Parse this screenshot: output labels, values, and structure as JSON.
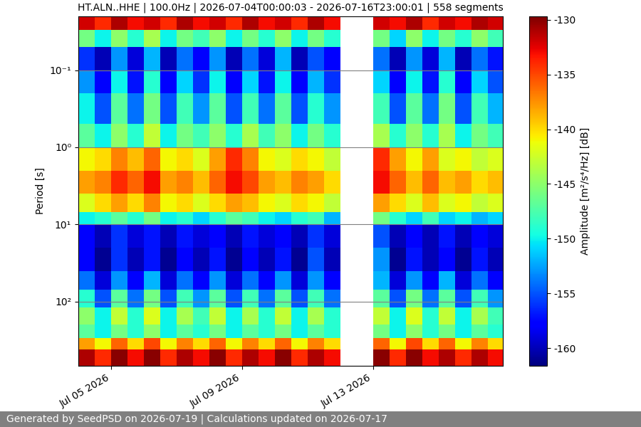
{
  "chart_data": {
    "type": "heatmap",
    "title": "HT.ALN..HHE | 100.0Hz | 2026-07-04T00:00:03 - 2026-07-16T23:00:01 | 558 segments",
    "y_label": "Period [s]",
    "footer": "Generated by SeedPSD on 2026-07-19 | Calculations updated on 2026-07-17",
    "log": "y",
    "grid": true,
    "color": "jet",
    "xlim": [
      "2026-07-04T00:00:03",
      "2026-07-16T23:00:01"
    ],
    "xticks": [
      {
        "value": "2026-07-05T00:00:00",
        "label": "Jul 05 2026"
      },
      {
        "value": "2026-07-09T00:00:00",
        "label": "Jul 09 2026"
      },
      {
        "value": "2026-07-13T00:00:00",
        "label": "Jul 13 2026"
      }
    ],
    "ylim": [
      685,
      0.02
    ],
    "yticks": [
      {
        "value": 0.1,
        "label": "10⁻¹"
      },
      {
        "value": 1,
        "label": "10⁰"
      },
      {
        "value": 10,
        "label": "10¹"
      },
      {
        "value": 100,
        "label": "10²"
      }
    ],
    "x_edges": [
      "2026-07-04T00:00:03",
      "2026-07-04T12:00:00",
      "2026-07-05T00:00:00",
      "2026-07-05T12:00:00",
      "2026-07-06T00:00:00",
      "2026-07-06T12:00:00",
      "2026-07-07T00:00:00",
      "2026-07-07T12:00:00",
      "2026-07-08T00:00:00",
      "2026-07-08T12:00:00",
      "2026-07-09T00:00:00",
      "2026-07-09T12:00:00",
      "2026-07-10T00:00:00",
      "2026-07-10T12:00:00",
      "2026-07-11T00:00:00",
      "2026-07-11T12:00:00",
      "2026-07-12T00:00:00",
      "2026-07-12T12:00:00",
      "2026-07-13T00:00:00",
      "2026-07-13T12:00:00",
      "2026-07-14T00:00:00",
      "2026-07-14T12:00:00",
      "2026-07-15T00:00:00",
      "2026-07-15T12:00:00",
      "2026-07-16T00:00:00",
      "2026-07-16T12:00:00",
      "2026-07-16T23:00:01"
    ],
    "y_edges": [
      0.02,
      0.03,
      0.05,
      0.1,
      0.2,
      0.5,
      1,
      2,
      4,
      7,
      10,
      20,
      40,
      70,
      120,
      200,
      300,
      420,
      685
    ],
    "cells": [
      [
        -132,
        -134,
        -131,
        -133,
        -132,
        -134,
        -131,
        -133,
        -132,
        -134,
        -131,
        -133,
        -132,
        -134,
        -131,
        -133,
        null,
        null,
        -132,
        -133,
        -131,
        -134,
        -132,
        -133,
        -131,
        -132
      ],
      [
        -146,
        -150,
        -145,
        -149,
        -144,
        -150,
        -146,
        -148,
        -145,
        -150,
        -146,
        -149,
        -145,
        -150,
        -146,
        -149,
        null,
        null,
        -146,
        -151,
        -145,
        -150,
        -146,
        -149,
        -145,
        -148
      ],
      [
        -156,
        -160,
        -153,
        -159,
        -152,
        -160,
        -154,
        -158,
        -153,
        -160,
        -154,
        -159,
        -152,
        -160,
        -155,
        -158,
        null,
        null,
        -154,
        -160,
        -153,
        -159,
        -152,
        -160,
        -154,
        -157
      ],
      [
        -153,
        -158,
        -150,
        -157,
        -149,
        -158,
        -151,
        -156,
        -150,
        -158,
        -151,
        -157,
        -150,
        -158,
        -152,
        -156,
        null,
        null,
        -151,
        -158,
        -150,
        -157,
        -149,
        -158,
        -151,
        -155
      ],
      [
        -150,
        -155,
        -147,
        -154,
        -146,
        -155,
        -148,
        -153,
        -147,
        -155,
        -148,
        -154,
        -147,
        -155,
        -149,
        -153,
        null,
        null,
        -148,
        -155,
        -147,
        -154,
        -146,
        -155,
        -148,
        -152
      ],
      [
        -147,
        -150,
        -145,
        -149,
        -143,
        -150,
        -146,
        -148,
        -145,
        -149,
        -144,
        -148,
        -145,
        -150,
        -146,
        -149,
        null,
        null,
        -144,
        -149,
        -145,
        -149,
        -144,
        -150,
        -146,
        -148
      ],
      [
        -141,
        -140,
        -137,
        -139,
        -136,
        -141,
        -140,
        -142,
        -138,
        -134,
        -137,
        -141,
        -142,
        -140,
        -141,
        -143,
        null,
        null,
        -134,
        -138,
        -141,
        -138,
        -142,
        -141,
        -143,
        -142
      ],
      [
        -138,
        -137,
        -134,
        -136,
        -133,
        -138,
        -137,
        -139,
        -136,
        -133,
        -135,
        -138,
        -139,
        -137,
        -138,
        -140,
        null,
        null,
        -133,
        -136,
        -139,
        -136,
        -139,
        -138,
        -140,
        -139
      ],
      [
        -142,
        -140,
        -138,
        -140,
        -137,
        -141,
        -140,
        -142,
        -140,
        -138,
        -139,
        -141,
        -142,
        -140,
        -141,
        -143,
        null,
        null,
        -138,
        -140,
        -142,
        -139,
        -142,
        -141,
        -143,
        -142
      ],
      [
        -150,
        -149,
        -147,
        -149,
        -146,
        -150,
        -149,
        -151,
        -149,
        -147,
        -148,
        -150,
        -151,
        -149,
        -148,
        -152,
        null,
        null,
        -146,
        -149,
        -151,
        -148,
        -151,
        -150,
        -152,
        -151
      ],
      [
        -158,
        -160,
        -156,
        -159,
        -157,
        -160,
        -157,
        -159,
        -158,
        -160,
        -157,
        -159,
        -158,
        -160,
        -156,
        -159,
        null,
        null,
        -155,
        -160,
        -158,
        -160,
        -157,
        -160,
        -158,
        -159
      ],
      [
        -158,
        -161,
        -156,
        -160,
        -157,
        -161,
        -158,
        -160,
        -157,
        -161,
        -158,
        -160,
        -157,
        -161,
        -155,
        -160,
        null,
        null,
        -153,
        -161,
        -157,
        -160,
        -158,
        -161,
        -157,
        -160
      ],
      [
        -154,
        -159,
        -153,
        -158,
        -152,
        -159,
        -154,
        -158,
        -153,
        -159,
        -154,
        -158,
        -153,
        -159,
        -153,
        -158,
        null,
        null,
        -152,
        -159,
        -153,
        -158,
        -152,
        -159,
        -154,
        -158
      ],
      [
        -149,
        -155,
        -147,
        -154,
        -146,
        -155,
        -148,
        -153,
        -147,
        -155,
        -148,
        -154,
        -147,
        -155,
        -148,
        -154,
        null,
        null,
        -147,
        -155,
        -146,
        -154,
        -147,
        -155,
        -148,
        -153
      ],
      [
        -145,
        -150,
        -143,
        -149,
        -142,
        -150,
        -144,
        -148,
        -143,
        -150,
        -144,
        -149,
        -143,
        -150,
        -144,
        -149,
        null,
        null,
        -143,
        -150,
        -142,
        -149,
        -143,
        -150,
        -144,
        -148
      ],
      [
        -147,
        -150,
        -146,
        -149,
        -145,
        -150,
        -147,
        -149,
        -146,
        -150,
        -147,
        -149,
        -146,
        -150,
        -147,
        -149,
        null,
        null,
        -146,
        -150,
        -145,
        -149,
        -146,
        -150,
        -147,
        -149
      ],
      [
        -138,
        -141,
        -136,
        -140,
        -135,
        -141,
        -137,
        -140,
        -136,
        -141,
        -137,
        -140,
        -136,
        -141,
        -137,
        -140,
        null,
        null,
        -136,
        -141,
        -135,
        -140,
        -136,
        -141,
        -137,
        -140
      ],
      [
        -131,
        -134,
        -130,
        -133,
        -130,
        -134,
        -131,
        -133,
        -130,
        -134,
        -131,
        -133,
        -130,
        -134,
        -131,
        -133,
        null,
        null,
        -130,
        -134,
        -130,
        -133,
        -131,
        -134,
        -131,
        -133
      ]
    ],
    "colorbar": {
      "label": "Amplitude [m²/s⁴/Hz] [dB]",
      "range": [
        -161.6,
        -129.7
      ],
      "ticks": [
        -160,
        -155,
        -150,
        -145,
        -140,
        -135,
        -130
      ]
    }
  }
}
